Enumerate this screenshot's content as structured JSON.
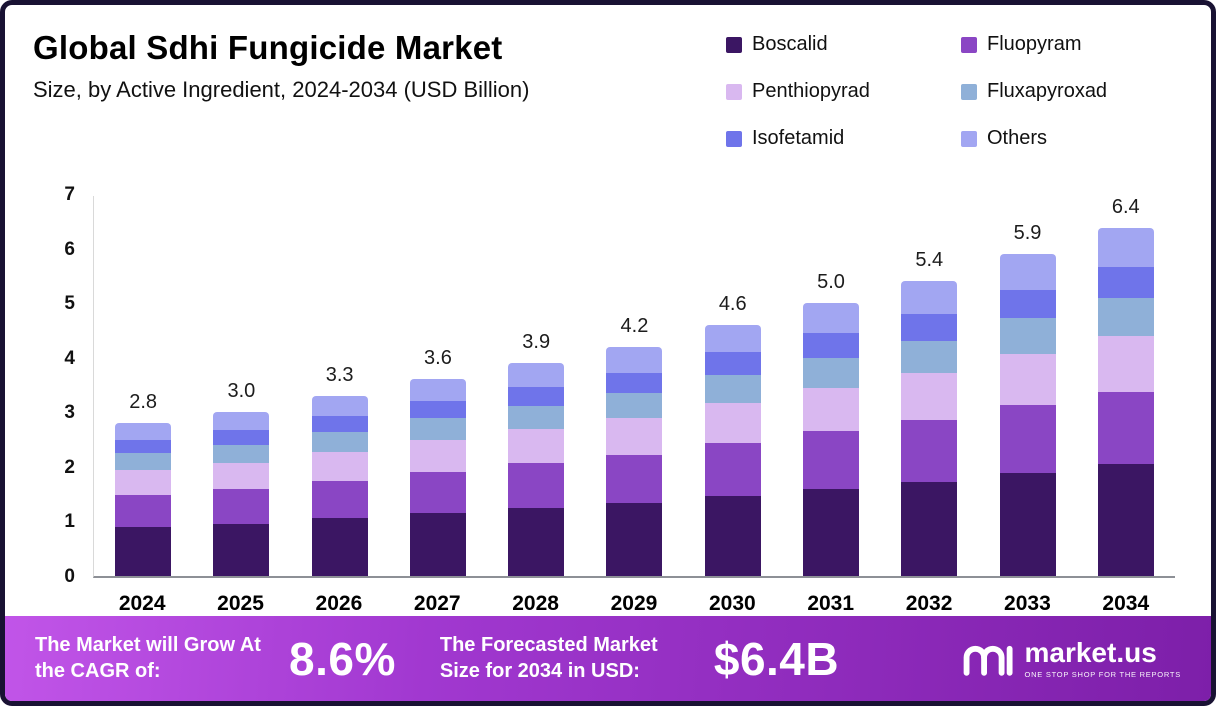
{
  "header": {
    "title": "Global Sdhi Fungicide Market",
    "subtitle": "Size, by Active Ingredient, 2024-2034 (USD Billion)"
  },
  "chart_data": {
    "type": "bar",
    "stacked": true,
    "title": "Global Sdhi Fungicide Market",
    "subtitle": "Size, by Active Ingredient, 2024-2034 (USD Billion)",
    "xlabel": "",
    "ylabel": "",
    "ylim": [
      0,
      7
    ],
    "yticks": [
      0,
      1,
      2,
      3,
      4,
      5,
      6,
      7
    ],
    "grid": false,
    "legend_position": "top-right",
    "categories": [
      "2024",
      "2025",
      "2026",
      "2027",
      "2028",
      "2029",
      "2030",
      "2031",
      "2032",
      "2033",
      "2034"
    ],
    "totals": [
      2.8,
      3.0,
      3.3,
      3.6,
      3.9,
      4.2,
      4.6,
      5.0,
      5.4,
      5.9,
      6.4
    ],
    "series": [
      {
        "name": "Boscalid",
        "color": "#3b1663",
        "values": [
          0.9,
          0.96,
          1.06,
          1.15,
          1.25,
          1.34,
          1.47,
          1.6,
          1.73,
          1.89,
          2.05
        ]
      },
      {
        "name": "Fluopyram",
        "color": "#8a46c4",
        "values": [
          0.59,
          0.63,
          0.69,
          0.76,
          0.82,
          0.88,
          0.97,
          1.05,
          1.13,
          1.24,
          1.34
        ]
      },
      {
        "name": "Penthiopyrad",
        "color": "#d9b8f0",
        "values": [
          0.45,
          0.48,
          0.53,
          0.58,
          0.62,
          0.67,
          0.74,
          0.8,
          0.86,
          0.94,
          1.02
        ]
      },
      {
        "name": "Fluxapyroxad",
        "color": "#8fb0d8",
        "values": [
          0.31,
          0.33,
          0.36,
          0.4,
          0.43,
          0.46,
          0.51,
          0.55,
          0.59,
          0.65,
          0.7
        ]
      },
      {
        "name": "Isofetamid",
        "color": "#6f74ea",
        "values": [
          0.25,
          0.27,
          0.3,
          0.32,
          0.35,
          0.38,
          0.41,
          0.45,
          0.49,
          0.53,
          0.58
        ]
      },
      {
        "name": "Others",
        "color": "#a2a6f2",
        "values": [
          0.3,
          0.33,
          0.36,
          0.39,
          0.43,
          0.47,
          0.5,
          0.55,
          0.6,
          0.65,
          0.71
        ]
      }
    ]
  },
  "footer": {
    "cagr_label": "The Market will Grow At the CAGR of:",
    "cagr_value": "8.6%",
    "forecast_label": "The Forecasted Market Size for 2034 in USD:",
    "forecast_value": "$6.4B",
    "brand": "market.us",
    "brand_tagline": "ONE STOP SHOP FOR THE REPORTS"
  }
}
